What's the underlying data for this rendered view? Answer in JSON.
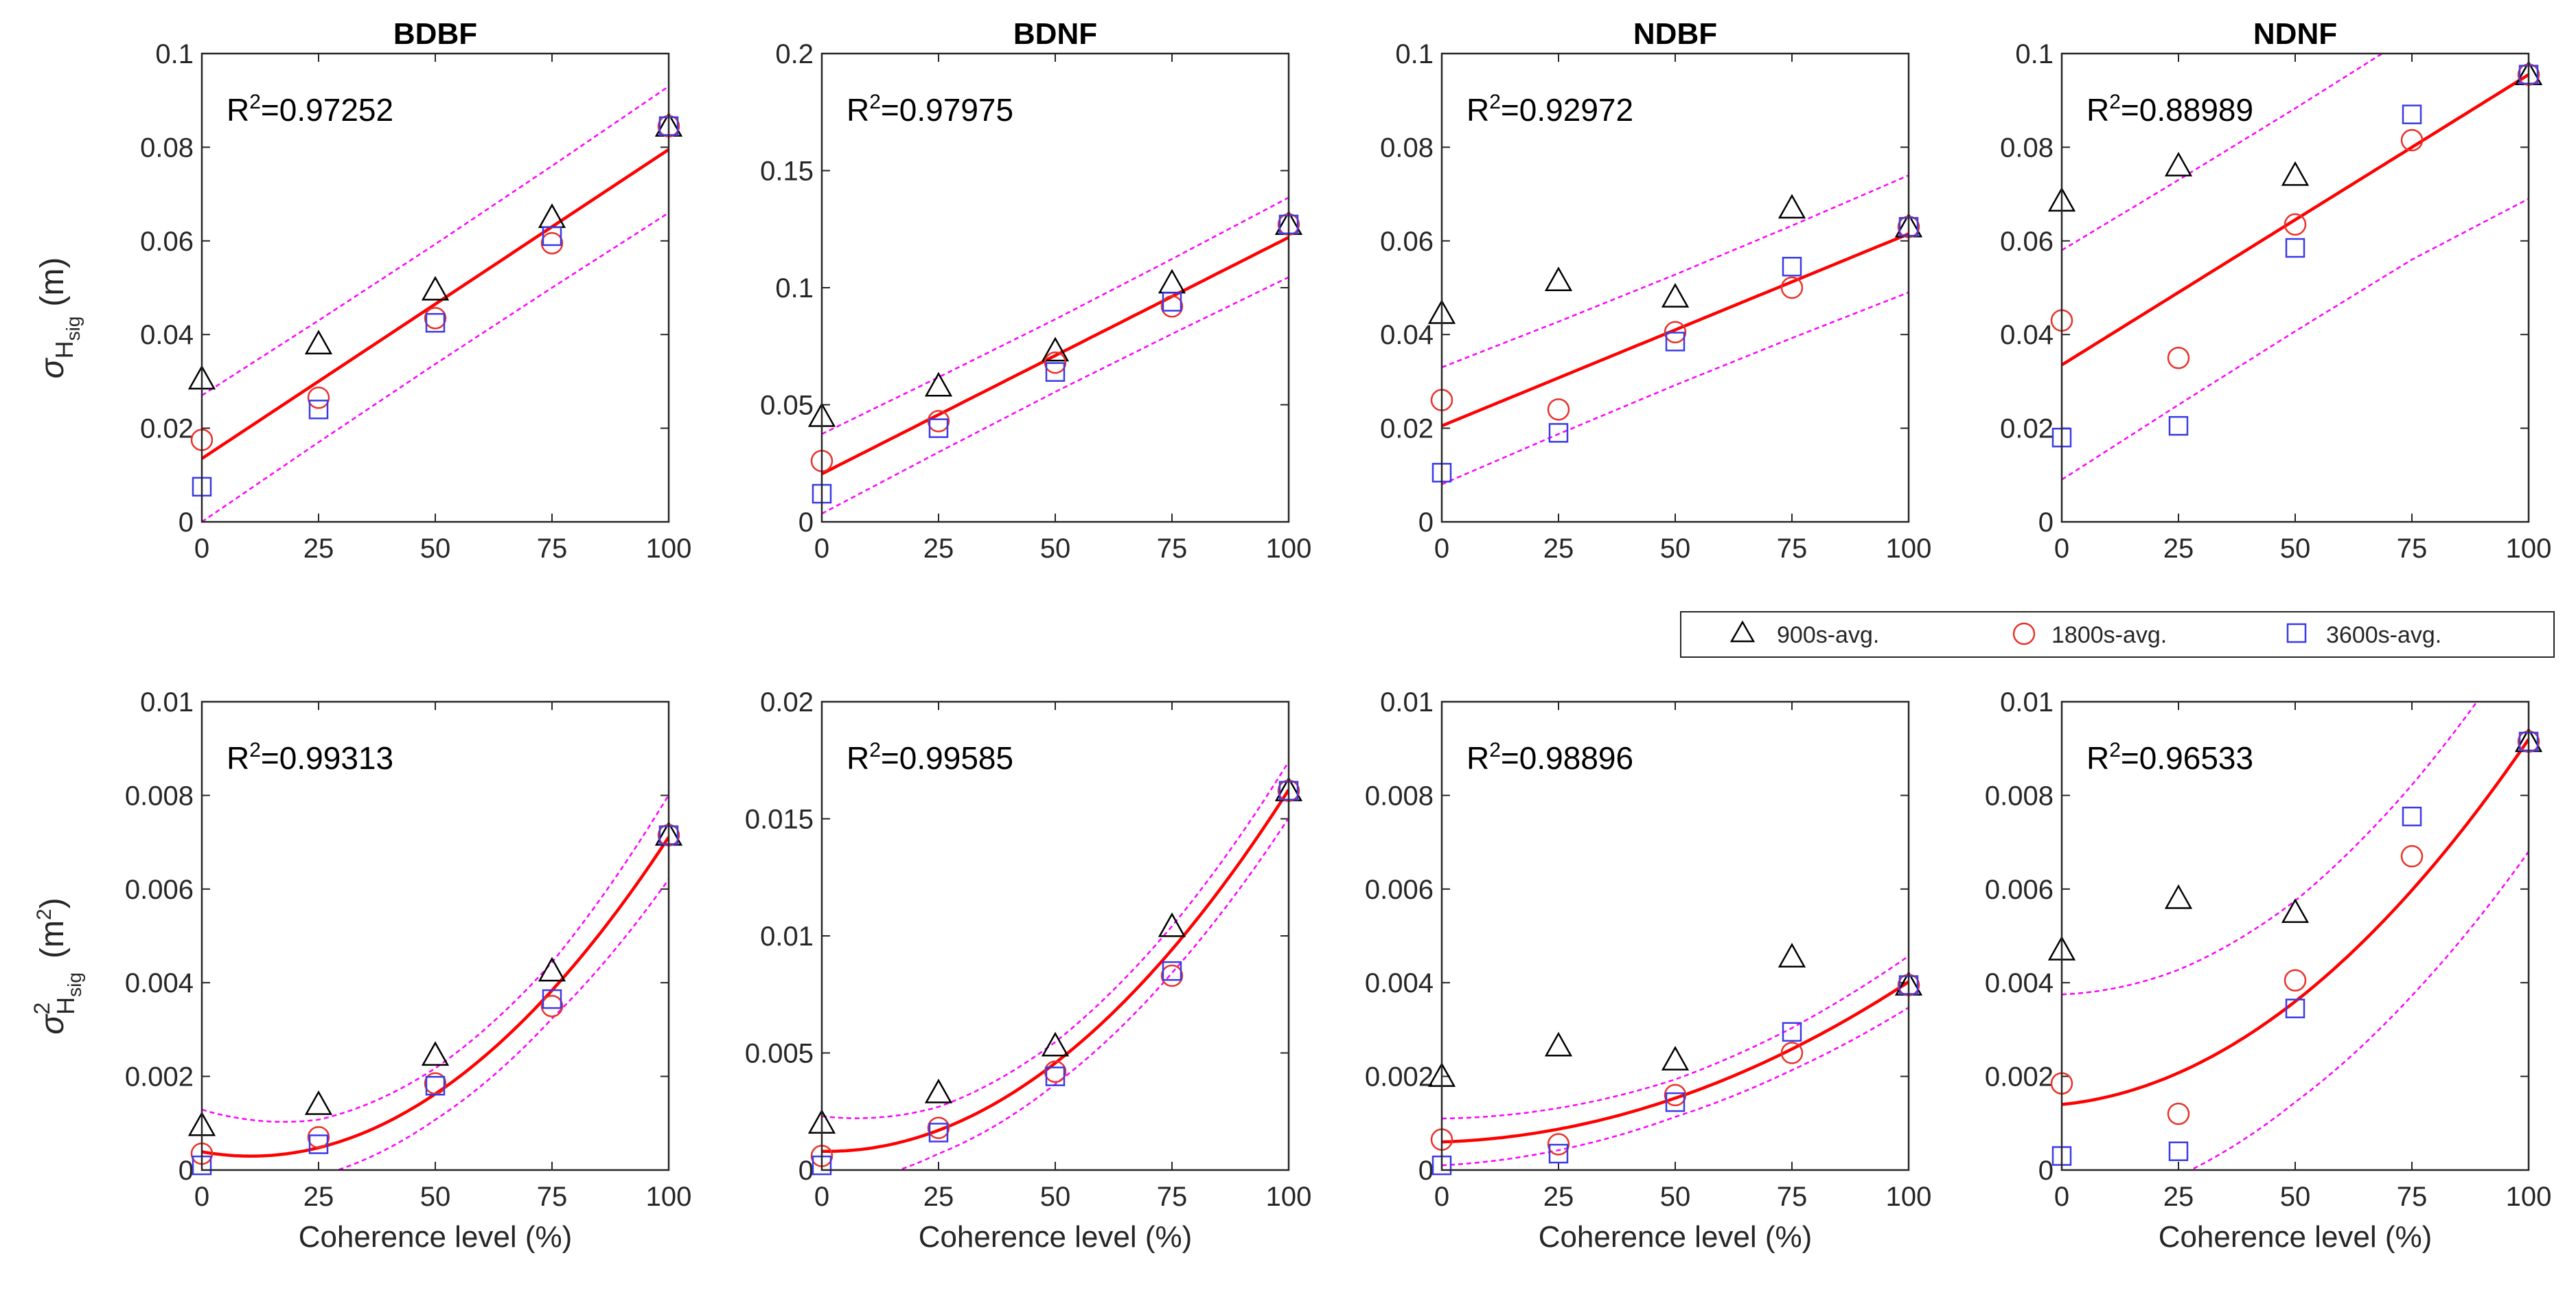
{
  "figure": {
    "ylabel_top": {
      "symbol": "σ",
      "subscript": "H",
      "sub_subscript": "sig",
      "unit": "(m)"
    },
    "ylabel_bottom": {
      "symbol": "σ",
      "superscript": "2",
      "subscript": "H",
      "sub_subscript": "sig",
      "unit": "(m",
      "unit_sup": "2",
      "unit_close": ")"
    },
    "legend": [
      {
        "label": "900s-avg.",
        "marker": "triangle",
        "color": "#000000"
      },
      {
        "label": "1800s-avg.",
        "marker": "circle",
        "color": "#e8322a"
      },
      {
        "label": "3600s-avg.",
        "marker": "square",
        "color": "#3a3ae6"
      }
    ],
    "colors": {
      "fit": "#ff0000",
      "bounds": "#ff00ff",
      "triangle": "#000000",
      "circle": "#e8322a",
      "square": "#3a3ae6"
    }
  },
  "chart_data": [
    {
      "type": "scatter",
      "title": "BDBF",
      "r2_prefix": "R",
      "r2_sup": "2",
      "r2_value": "=0.97252",
      "x": [
        0,
        25,
        50,
        75,
        100
      ],
      "xlim": [
        0,
        100
      ],
      "ylim": [
        0,
        0.1
      ],
      "xticks": [
        0,
        25,
        50,
        75,
        100
      ],
      "xtick_labels": [
        "0",
        "25",
        "50",
        "75",
        "100"
      ],
      "yticks": [
        0,
        0.02,
        0.04,
        0.06,
        0.08,
        0.1
      ],
      "ytick_labels": [
        "0",
        "0.02",
        "0.04",
        "0.06",
        "0.08",
        "0.1"
      ],
      "xlabel": "",
      "series": [
        {
          "name": "900s-avg.",
          "values": [
            0.0305,
            0.038,
            0.0495,
            0.065,
            0.0845
          ]
        },
        {
          "name": "1800s-avg.",
          "values": [
            0.0175,
            0.0265,
            0.0435,
            0.0595,
            0.0845
          ]
        },
        {
          "name": "3600s-avg.",
          "values": [
            0.0075,
            0.024,
            0.0425,
            0.061,
            0.0845
          ]
        }
      ],
      "fit": {
        "kind": "poly",
        "coef": [
          0.0135,
          0.00066
        ]
      },
      "bound_width": [
        0.0135,
        0.013,
        0.0128,
        0.013,
        0.0135
      ]
    },
    {
      "type": "scatter",
      "title": "BDNF",
      "r2_prefix": "R",
      "r2_sup": "2",
      "r2_value": "=0.97975",
      "x": [
        0,
        25,
        50,
        75,
        100
      ],
      "xlim": [
        0,
        100
      ],
      "ylim": [
        0,
        0.2
      ],
      "xticks": [
        0,
        25,
        50,
        75,
        100
      ],
      "xtick_labels": [
        "0",
        "25",
        "50",
        "75",
        "100"
      ],
      "yticks": [
        0,
        0.05,
        0.1,
        0.15,
        0.2
      ],
      "ytick_labels": [
        "0",
        "0.05",
        "0.1",
        "0.15",
        "0.2"
      ],
      "xlabel": "",
      "series": [
        {
          "name": "900s-avg.",
          "values": [
            0.045,
            0.058,
            0.073,
            0.102,
            0.127
          ]
        },
        {
          "name": "1800s-avg.",
          "values": [
            0.026,
            0.043,
            0.068,
            0.092,
            0.127
          ]
        },
        {
          "name": "3600s-avg.",
          "values": [
            0.012,
            0.04,
            0.064,
            0.094,
            0.127
          ]
        }
      ],
      "fit": {
        "kind": "poly",
        "coef": [
          0.0205,
          0.00101
        ]
      },
      "bound_width": [
        0.017,
        0.016,
        0.0155,
        0.016,
        0.017
      ]
    },
    {
      "type": "scatter",
      "title": "NDBF",
      "r2_prefix": "R",
      "r2_sup": "2",
      "r2_value": "=0.92972",
      "x": [
        0,
        25,
        50,
        75,
        100
      ],
      "xlim": [
        0,
        100
      ],
      "ylim": [
        0,
        0.1
      ],
      "xticks": [
        0,
        25,
        50,
        75,
        100
      ],
      "xtick_labels": [
        "0",
        "25",
        "50",
        "75",
        "100"
      ],
      "yticks": [
        0,
        0.02,
        0.04,
        0.06,
        0.08,
        0.1
      ],
      "ytick_labels": [
        "0",
        "0.02",
        "0.04",
        "0.06",
        "0.08",
        "0.1"
      ],
      "xlabel": "",
      "series": [
        {
          "name": "900s-avg.",
          "values": [
            0.0445,
            0.0515,
            0.048,
            0.067,
            0.063
          ]
        },
        {
          "name": "1800s-avg.",
          "values": [
            0.026,
            0.024,
            0.0405,
            0.05,
            0.063
          ]
        },
        {
          "name": "3600s-avg.",
          "values": [
            0.0105,
            0.019,
            0.0385,
            0.0545,
            0.063
          ]
        }
      ],
      "fit": {
        "kind": "poly",
        "coef": [
          0.0205,
          0.00041
        ]
      },
      "bound_width": [
        0.0125,
        0.012,
        0.0118,
        0.012,
        0.0125
      ]
    },
    {
      "type": "scatter",
      "title": "NDNF",
      "r2_prefix": "R",
      "r2_sup": "2",
      "r2_value": "=0.88989",
      "x": [
        0,
        25,
        50,
        75,
        100
      ],
      "xlim": [
        0,
        100
      ],
      "ylim": [
        0,
        0.1
      ],
      "xticks": [
        0,
        25,
        50,
        75,
        100
      ],
      "xtick_labels": [
        "0",
        "25",
        "50",
        "75",
        "100"
      ],
      "yticks": [
        0,
        0.02,
        0.04,
        0.06,
        0.08,
        0.1
      ],
      "ytick_labels": [
        "0",
        "0.02",
        "0.04",
        "0.06",
        "0.08",
        "0.1"
      ],
      "xlabel": "",
      "series": [
        {
          "name": "900s-avg.",
          "values": [
            0.0685,
            0.076,
            0.074,
            null,
            0.0955
          ]
        },
        {
          "name": "1800s-avg.",
          "values": [
            0.043,
            0.035,
            0.0635,
            0.0815,
            0.0955
          ]
        },
        {
          "name": "3600s-avg.",
          "values": [
            0.018,
            0.0205,
            0.0585,
            0.087,
            0.0955
          ]
        }
      ],
      "fit": {
        "kind": "poly",
        "coef": [
          0.0335,
          0.00062
        ]
      },
      "bound_width": [
        0.0245,
        0.024,
        0.0238,
        0.024,
        0.0265
      ]
    },
    {
      "type": "scatter",
      "title": "",
      "r2_prefix": "R",
      "r2_sup": "2",
      "r2_value": "=0.99313",
      "x": [
        0,
        25,
        50,
        75,
        100
      ],
      "xlim": [
        0,
        100
      ],
      "ylim": [
        0,
        0.01
      ],
      "xticks": [
        0,
        25,
        50,
        75,
        100
      ],
      "xtick_labels": [
        "0",
        "25",
        "50",
        "75",
        "100"
      ],
      "yticks": [
        0,
        0.002,
        0.004,
        0.006,
        0.008,
        0.01
      ],
      "ytick_labels": [
        "0",
        "0.002",
        "0.004",
        "0.006",
        "0.008",
        "0.01"
      ],
      "xlabel": "Coherence level (%)",
      "series": [
        {
          "name": "900s-avg.",
          "values": [
            0.00095,
            0.0014,
            0.00245,
            0.00425,
            0.00715
          ]
        },
        {
          "name": "1800s-avg.",
          "values": [
            0.00035,
            0.0007,
            0.00185,
            0.0035,
            0.00715
          ]
        },
        {
          "name": "3600s-avg.",
          "values": [
            0.0001,
            0.00055,
            0.0018,
            0.00365,
            0.00715
          ]
        }
      ],
      "fit": {
        "kind": "poly",
        "coef": [
          0.00039,
          -1.78e-05,
          8.5e-07
        ]
      },
      "bound_width": [
        0.0009,
        0.0006,
        0.00055,
        0.0006,
        0.0009
      ]
    },
    {
      "type": "scatter",
      "title": "",
      "r2_prefix": "R",
      "r2_sup": "2",
      "r2_value": "=0.99585",
      "x": [
        0,
        25,
        50,
        75,
        100
      ],
      "xlim": [
        0,
        100
      ],
      "ylim": [
        0,
        0.02
      ],
      "xticks": [
        0,
        25,
        50,
        75,
        100
      ],
      "xtick_labels": [
        "0",
        "25",
        "50",
        "75",
        "100"
      ],
      "yticks": [
        0,
        0.005,
        0.01,
        0.015,
        0.02
      ],
      "ytick_labels": [
        "0",
        "0.005",
        "0.01",
        "0.015",
        "0.02"
      ],
      "xlabel": "Coherence level (%)",
      "series": [
        {
          "name": "900s-avg.",
          "values": [
            0.002,
            0.0033,
            0.0053,
            0.0104,
            0.0162
          ]
        },
        {
          "name": "1800s-avg.",
          "values": [
            0.0006,
            0.0018,
            0.0042,
            0.0083,
            0.0162
          ]
        },
        {
          "name": "3600s-avg.",
          "values": [
            0.0002,
            0.0016,
            0.004,
            0.0085,
            0.0162
          ]
        }
      ],
      "fit": {
        "kind": "poly",
        "coef": [
          0.0008,
          -3.6e-06,
          1.58e-06
        ]
      },
      "bound_width": [
        0.0015,
        0.001,
        0.0009,
        0.001,
        0.0012
      ]
    },
    {
      "type": "scatter",
      "title": "",
      "r2_prefix": "R",
      "r2_sup": "2",
      "r2_value": "=0.98896",
      "x": [
        0,
        25,
        50,
        75,
        100
      ],
      "xlim": [
        0,
        100
      ],
      "ylim": [
        0,
        0.01
      ],
      "xticks": [
        0,
        25,
        50,
        75,
        100
      ],
      "xtick_labels": [
        "0",
        "25",
        "50",
        "75",
        "100"
      ],
      "yticks": [
        0,
        0.002,
        0.004,
        0.006,
        0.008,
        0.01
      ],
      "ytick_labels": [
        "0",
        "0.002",
        "0.004",
        "0.006",
        "0.008",
        "0.01"
      ],
      "xlabel": "Coherence level (%)",
      "series": [
        {
          "name": "900s-avg.",
          "values": [
            0.002,
            0.00265,
            0.00235,
            0.00455,
            0.00395
          ]
        },
        {
          "name": "1800s-avg.",
          "values": [
            0.00065,
            0.00055,
            0.0016,
            0.0025,
            0.00395
          ]
        },
        {
          "name": "3600s-avg.",
          "values": [
            0.0001,
            0.00035,
            0.00145,
            0.00295,
            0.00395
          ]
        }
      ],
      "fit": {
        "kind": "poly",
        "coef": [
          0.0006,
          3.2e-06,
          3.1e-07
        ]
      },
      "bound_width": [
        0.0005,
        0.00045,
        0.0004,
        0.00045,
        0.00055
      ]
    },
    {
      "type": "scatter",
      "title": "",
      "r2_prefix": "R",
      "r2_sup": "2",
      "r2_value": "=0.96533",
      "x": [
        0,
        25,
        50,
        75,
        100
      ],
      "xlim": [
        0,
        100
      ],
      "ylim": [
        0,
        0.01
      ],
      "xticks": [
        0,
        25,
        50,
        75,
        100
      ],
      "xtick_labels": [
        "0",
        "25",
        "50",
        "75",
        "100"
      ],
      "yticks": [
        0,
        0.002,
        0.004,
        0.006,
        0.008,
        0.01
      ],
      "ytick_labels": [
        "0",
        "0.002",
        "0.004",
        "0.006",
        "0.008",
        "0.01"
      ],
      "xlabel": "Coherence level (%)",
      "series": [
        {
          "name": "900s-avg.",
          "values": [
            0.0047,
            0.0058,
            0.0055,
            null,
            0.00915
          ]
        },
        {
          "name": "1800s-avg.",
          "values": [
            0.00185,
            0.0012,
            0.00405,
            0.0067,
            0.00915
          ]
        },
        {
          "name": "3600s-avg.",
          "values": [
            0.0003,
            0.0004,
            0.00345,
            0.00755,
            0.00915
          ]
        }
      ],
      "fit": {
        "kind": "poly",
        "coef": [
          0.0014,
          1e-05,
          6.8e-07
        ]
      },
      "bound_width": [
        0.00235,
        0.0022,
        0.00215,
        0.00225,
        0.0024
      ]
    }
  ]
}
